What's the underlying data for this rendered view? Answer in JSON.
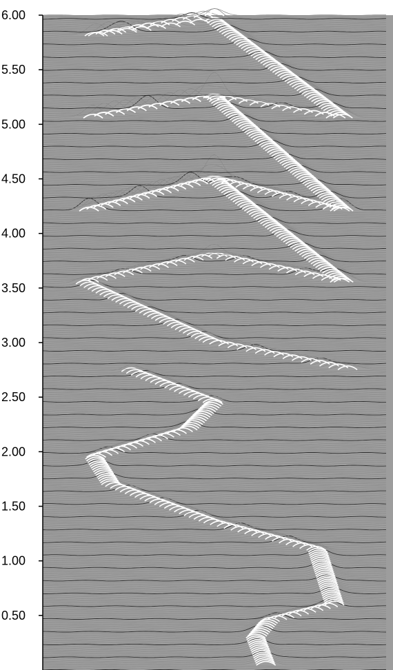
{
  "chart_data": {
    "type": "line",
    "title": "",
    "xlabel": "",
    "ylabel": "",
    "ylim": [
      0.0,
      6.0
    ],
    "y_ticks": [
      "0.50",
      "1.00",
      "1.50",
      "2.00",
      "2.50",
      "3.00",
      "3.50",
      "4.00",
      "4.50",
      "5.00",
      "5.50",
      "6.00"
    ],
    "grid": false,
    "legend": "none",
    "description_series": "waterfall stack of intensity traces; bright ridge follows a sinuous path that splits into a crossing diamond pattern above 2.0",
    "ridge_path": {
      "x": [
        0.65,
        0.62,
        0.66,
        0.85,
        0.8,
        0.5,
        0.2,
        0.15,
        0.42,
        0.5,
        0.25,
        0.9,
        0.5,
        0.12,
        0.5,
        0.88,
        0.5,
        0.12,
        0.5,
        0.88,
        0.5,
        0.12,
        0.5,
        0.88,
        0.5,
        0.12,
        0.5
      ],
      "y": [
        0.05,
        0.3,
        0.45,
        0.6,
        1.1,
        1.35,
        1.7,
        1.95,
        2.2,
        2.45,
        2.75,
        2.75,
        3.0,
        3.55,
        3.8,
        3.55,
        4.5,
        4.2,
        4.5,
        4.2,
        5.25,
        5.05,
        5.25,
        5.05,
        5.95,
        5.8,
        6.0
      ]
    },
    "colors": {
      "trace_light": "#8a8a8a",
      "trace_dark": "#2a2a2a",
      "ridge": "#ffffff",
      "axis": "#000000"
    }
  }
}
